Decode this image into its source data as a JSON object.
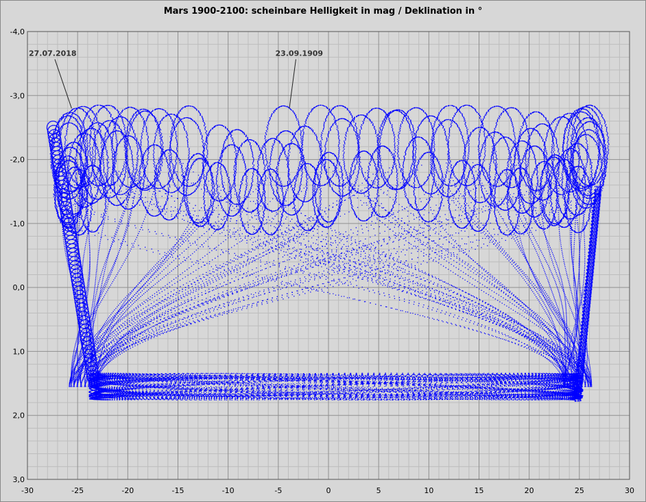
{
  "chart_data": {
    "type": "scatter",
    "title": "Mars 1900-2100: scheinbare Helligkeit in mag / Deklination in °",
    "xlabel": "",
    "ylabel": "",
    "xlim": [
      -30,
      30
    ],
    "ylim": [
      -4,
      3
    ],
    "y_inverted": true,
    "grid": true,
    "legend": "none",
    "x_ticks": [
      "-30",
      "-25",
      "-20",
      "-15",
      "-10",
      "-5",
      "0",
      "5",
      "10",
      "15",
      "20",
      "25",
      "30"
    ],
    "y_ticks": [
      "-4,0",
      "-3,0",
      "-2,0",
      "-1,0",
      "0,0",
      "1,0",
      "2,0",
      "3,0"
    ],
    "series": [
      {
        "color": "#0000ff",
        "description_points": "dense dotted loops; apparent magnitude vs declination for Mars, 1900-2100"
      }
    ],
    "annotations": [
      {
        "text": "27.07.2018",
        "point": [
          -25.6,
          -2.8
        ]
      },
      {
        "text": "23.09.1909",
        "point": [
          -3.9,
          -2.8
        ]
      }
    ],
    "colors": {
      "background": "#d7d7d7",
      "grid_major": "#8f8f8f",
      "grid_minor": "#bdbdbd",
      "points": "#0000ff"
    }
  }
}
